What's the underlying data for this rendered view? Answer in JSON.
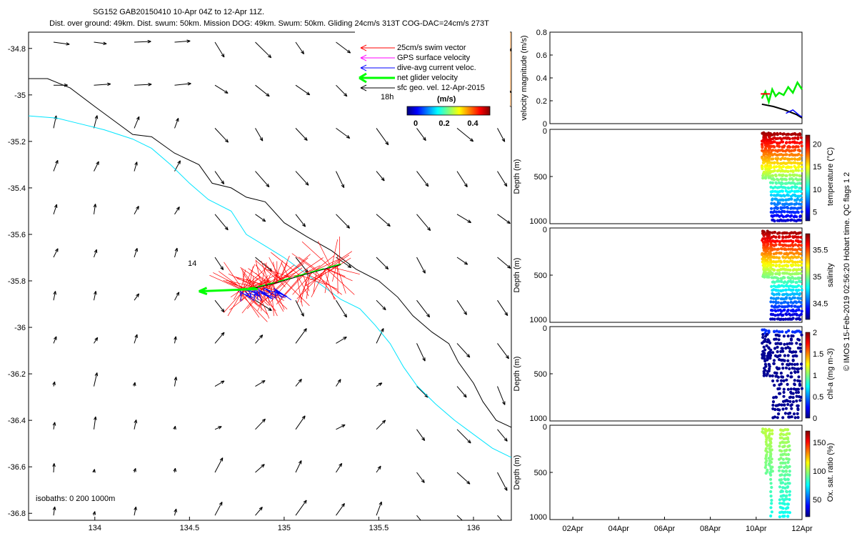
{
  "header": {
    "line1": "SG152 GAB20150410 10-Apr 04Z to 12-Apr 11Z.",
    "line2": "Dist. over ground: 49km. Dist. swum: 50km. Mission DOG: 49km. Swum: 50km. Gliding 24cm/s 313T COG-DAC=24cm/s 273T"
  },
  "colors": {
    "swim": "#ff0000",
    "gps": "#ff00ff",
    "dac": "#0000ff",
    "net": "#00ff00",
    "geo": "#000000",
    "isobath200": "#00e5ff",
    "isobath1000": "#000000",
    "land": "#ffcc99"
  },
  "chart_data": [
    {
      "type": "scatter",
      "title": "map",
      "xlim": [
        133.65,
        136.2
      ],
      "ylim": [
        -36.83,
        -34.73
      ],
      "xticks": [
        134,
        134.5,
        135,
        135.5,
        136
      ],
      "yticks": [
        -34.8,
        -35,
        -35.2,
        -35.4,
        -35.6,
        -35.8,
        -36,
        -36.2,
        -36.4,
        -36.6,
        -36.8
      ],
      "legend": [
        "25cm/s swim vector",
        "GPS surface velocity",
        "dive-avg current veloc.",
        "net glider velocity",
        "sfc geo. vel. 12-Apr-2015"
      ],
      "colorbar": {
        "label": "(m/s)",
        "ticks": [
          "0",
          "0.2",
          "0.4"
        ]
      },
      "track_labels": [
        "18h",
        "14"
      ],
      "isobaths_label": "isobaths: 0   200  1000m",
      "track": [
        [
          135.3,
          -35.73
        ],
        [
          135.12,
          -35.77
        ],
        [
          134.95,
          -35.81
        ],
        [
          134.85,
          -35.83
        ],
        [
          134.75,
          -35.84
        ]
      ],
      "net_velocity": {
        "from": [
          134.86,
          -35.835
        ],
        "to": [
          134.55,
          -35.845
        ]
      },
      "isobath_1000": [
        [
          133.65,
          -34.93
        ],
        [
          133.75,
          -34.93
        ],
        [
          133.87,
          -34.97
        ],
        [
          134,
          -35.05
        ],
        [
          134.1,
          -35.11
        ],
        [
          134.2,
          -35.17
        ],
        [
          134.3,
          -35.18
        ],
        [
          134.42,
          -35.25
        ],
        [
          134.55,
          -35.3
        ],
        [
          134.62,
          -35.38
        ],
        [
          134.72,
          -35.4
        ],
        [
          134.8,
          -35.44
        ],
        [
          134.9,
          -35.46
        ],
        [
          135,
          -35.55
        ],
        [
          135.12,
          -35.61
        ],
        [
          135.25,
          -35.67
        ],
        [
          135.38,
          -35.75
        ],
        [
          135.5,
          -35.8
        ],
        [
          135.6,
          -35.87
        ],
        [
          135.68,
          -35.95
        ],
        [
          135.78,
          -36.02
        ],
        [
          135.87,
          -36.07
        ],
        [
          135.92,
          -36.15
        ],
        [
          136.0,
          -36.24
        ],
        [
          136.05,
          -36.32
        ],
        [
          136.12,
          -36.4
        ],
        [
          136.2,
          -36.43
        ]
      ],
      "isobath_200": [
        [
          133.65,
          -35.09
        ],
        [
          133.8,
          -35.1
        ],
        [
          133.9,
          -35.12
        ],
        [
          134.05,
          -35.15
        ],
        [
          134.2,
          -35.19
        ],
        [
          134.3,
          -35.23
        ],
        [
          134.4,
          -35.3
        ],
        [
          134.5,
          -35.38
        ],
        [
          134.6,
          -35.45
        ],
        [
          134.72,
          -35.5
        ],
        [
          134.8,
          -35.6
        ],
        [
          134.9,
          -35.65
        ],
        [
          135.0,
          -35.7
        ],
        [
          135.1,
          -35.76
        ],
        [
          135.2,
          -35.82
        ],
        [
          135.3,
          -35.88
        ],
        [
          135.4,
          -35.92
        ],
        [
          135.48,
          -35.99
        ],
        [
          135.56,
          -36.07
        ],
        [
          135.63,
          -36.17
        ],
        [
          135.7,
          -36.25
        ],
        [
          135.8,
          -36.33
        ],
        [
          135.9,
          -36.4
        ],
        [
          136.0,
          -36.46
        ],
        [
          136.1,
          -36.52
        ],
        [
          136.2,
          -36.56
        ]
      ]
    },
    {
      "type": "line",
      "ylabel": "velocity magnitude (m/s)",
      "ylim": [
        0,
        0.8
      ],
      "yticks": [
        "0",
        "0.2",
        "0.4",
        "0.6",
        "0.8"
      ],
      "x_range_days": [
        0,
        11
      ],
      "series": [
        {
          "name": "sfc geo. vel. 12-Apr-2015",
          "x": [
            9.25,
            9.75,
            10.25,
            10.75,
            11.0
          ],
          "y": [
            0.17,
            0.15,
            0.12,
            0.08,
            0.05
          ]
        },
        {
          "name": "net glider velocity",
          "x": [
            9.25,
            9.4,
            9.55,
            9.7,
            9.85,
            10.0,
            10.2,
            10.4,
            10.6,
            10.8,
            11.0
          ],
          "y": [
            0.22,
            0.28,
            0.19,
            0.3,
            0.24,
            0.27,
            0.25,
            0.32,
            0.27,
            0.36,
            0.3
          ]
        },
        {
          "name": "dive-avg current veloc.",
          "x": [
            10.3,
            10.6,
            10.9,
            11.0
          ],
          "y": [
            0.09,
            0.12,
            0.07,
            0.06
          ]
        }
      ]
    }
  ],
  "profiles": {
    "xticks": [
      "02Apr",
      "04Apr",
      "06Apr",
      "08Apr",
      "10Apr",
      "12Apr"
    ],
    "depth_label": "Depth (m)",
    "depth_ticks": [
      "0",
      "500",
      "1000"
    ],
    "panels": [
      {
        "id": "temperature",
        "cbar_label": "temperature (°C)",
        "cbar_ticks": [
          "5",
          "10",
          "15",
          "20"
        ],
        "range": [
          3,
          22
        ]
      },
      {
        "id": "salinity",
        "cbar_label": "salinity",
        "cbar_ticks": [
          "34.5",
          "35",
          "35.5"
        ],
        "range": [
          34.2,
          35.8
        ]
      },
      {
        "id": "chl",
        "cbar_label": "chl-a (mg m-3)",
        "cbar_ticks": [
          "0",
          "0.5",
          "1",
          "1.5",
          "2"
        ],
        "range": [
          0,
          2
        ]
      },
      {
        "id": "oxygen",
        "cbar_label": "Ox. sat. ratio (%)",
        "cbar_ticks": [
          "50",
          "100",
          "150"
        ],
        "range": [
          20,
          170
        ]
      }
    ]
  },
  "footer": {
    "vertical_note": "© IMOS 15-Feb-2019 02:56:20 Hobart time. QC flags 1  2"
  }
}
